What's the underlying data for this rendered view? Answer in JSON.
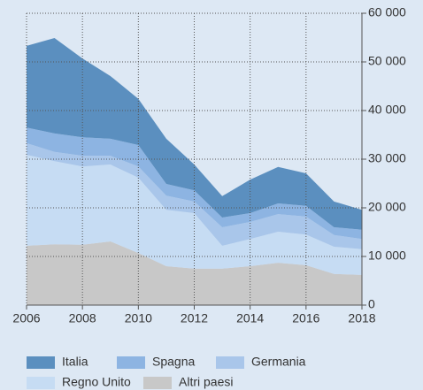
{
  "chart_data": {
    "type": "stacked_area",
    "x": [
      2006,
      2007,
      2008,
      2009,
      2010,
      2011,
      2012,
      2013,
      2014,
      2015,
      2016,
      2017,
      2018
    ],
    "series": [
      {
        "name": "Altri paesi",
        "color": "#c8c8c8",
        "values": [
          12200,
          12500,
          12400,
          13100,
          10700,
          8000,
          7500,
          7500,
          8000,
          8700,
          8200,
          6400,
          6200
        ]
      },
      {
        "name": "Regno Unito",
        "color": "#c6dcf3",
        "values": [
          18700,
          17100,
          16100,
          15800,
          15500,
          11600,
          11400,
          4700,
          5600,
          6400,
          6300,
          5600,
          5300
        ]
      },
      {
        "name": "Germania",
        "color": "#a9c6ea",
        "values": [
          2400,
          1900,
          2200,
          1800,
          2300,
          2900,
          2400,
          3800,
          3500,
          3600,
          3700,
          2400,
          2100
        ]
      },
      {
        "name": "Spagna",
        "color": "#8db4e2",
        "values": [
          3200,
          3800,
          3800,
          3500,
          4400,
          2400,
          2300,
          2000,
          1800,
          2200,
          2200,
          1600,
          1900
        ]
      },
      {
        "name": "Italia",
        "color": "#5b8fbf",
        "values": [
          16800,
          19600,
          16200,
          12900,
          9500,
          9300,
          5300,
          4400,
          6900,
          7500,
          6700,
          5300,
          4100
        ]
      }
    ],
    "xlim": [
      2006,
      2018
    ],
    "xticks": [
      2006,
      2008,
      2010,
      2012,
      2014,
      2016,
      2018
    ],
    "ylim": [
      0,
      60000
    ],
    "yticks": [
      {
        "value": 0,
        "label": "0"
      },
      {
        "value": 10000,
        "label": "10 000"
      },
      {
        "value": 20000,
        "label": "20 000"
      },
      {
        "value": 30000,
        "label": "30 000"
      },
      {
        "value": 40000,
        "label": "40 000"
      },
      {
        "value": 50000,
        "label": "50 000"
      },
      {
        "value": 60000,
        "label": "60 000"
      }
    ],
    "grid": true
  }
}
